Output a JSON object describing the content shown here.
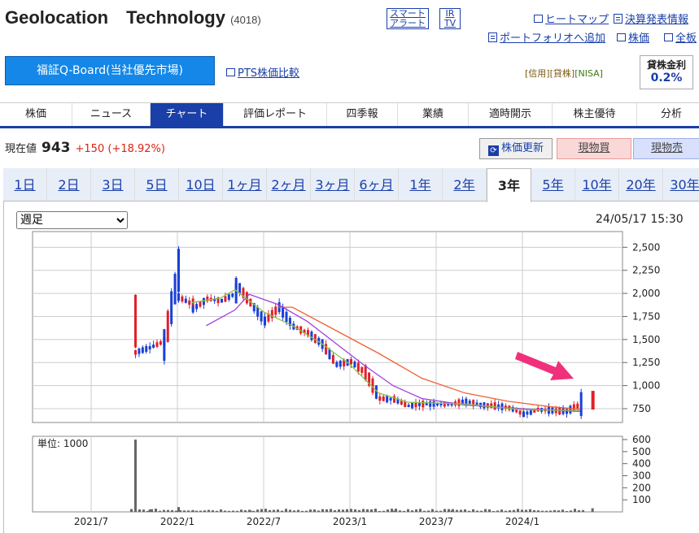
{
  "header": {
    "company": "Geolocation　Technology",
    "code": "(4018)",
    "smart_alert": [
      "スマート",
      "アラート"
    ],
    "ir_tv": [
      "IR",
      "TV"
    ],
    "links_row1": [
      "ヒートマップ",
      "決算発表情報"
    ],
    "links_row2": [
      "ポートフォリオへ追加",
      "株価",
      "全板"
    ]
  },
  "market": {
    "button_label": "福証Q-Board(当社優先市場)",
    "pts_link": "PTS株価比較",
    "tags": {
      "credit": "[信用]",
      "lending": "[貸株]",
      "nisa": "[NISA]"
    },
    "lending_rate_title": "貸株金利",
    "lending_rate_value": "0.2%"
  },
  "nav": {
    "tabs": [
      "株価",
      "ニュース",
      "チャート",
      "評価レポート",
      "四季報",
      "業績",
      "適時開示",
      "株主優待",
      "分析"
    ],
    "active": "チャート"
  },
  "quote": {
    "label": "現在値",
    "price": "943",
    "change": "+150",
    "change_pct": "(+18.92%)",
    "refresh_label": "株価更新",
    "buy_label": "現物買",
    "sell_label": "現物売"
  },
  "range_tabs": {
    "items": [
      "1日",
      "2日",
      "3日",
      "5日",
      "10日",
      "1ヶ月",
      "2ヶ月",
      "3ヶ月",
      "6ヶ月",
      "1年",
      "2年",
      "3年",
      "5年",
      "10年",
      "20年",
      "30年"
    ],
    "active": "3年"
  },
  "chart_controls": {
    "period_select": "週足",
    "timestamp": "24/05/17 15:30"
  },
  "colors": {
    "up": "#e0202a",
    "down": "#1a3fd8",
    "ma_short": "#8bc34a",
    "ma_mid": "#a23ee0",
    "ma_long": "#f06030",
    "volume": "#666666",
    "nav_active": "#1a3fa8"
  },
  "chart_data": [
    {
      "type": "candlestick",
      "x_labels": [
        "2021/7",
        "2022/1",
        "2022/7",
        "2023/1",
        "2023/7",
        "2024/1"
      ],
      "yticks": [
        "2,500",
        "2,250",
        "2,000",
        "1,750",
        "1,500",
        "1,250",
        "1,000",
        "750"
      ],
      "ylim": [
        600,
        2600
      ],
      "price_path": [
        [
          "2021/10",
          1700
        ],
        [
          "2021/10",
          1360
        ],
        [
          "2021/11",
          1410
        ],
        [
          "2021/12",
          1480
        ],
        [
          "2021/12",
          1440
        ],
        [
          "2022/1",
          2250
        ],
        [
          "2022/1",
          1960
        ],
        [
          "2022/2",
          1880
        ],
        [
          "2022/2",
          1830
        ],
        [
          "2022/3",
          1940
        ],
        [
          "2022/4",
          1920
        ],
        [
          "2022/5",
          2000
        ],
        [
          "2022/5",
          2110
        ],
        [
          "2022/6",
          1900
        ],
        [
          "2022/7",
          1700
        ],
        [
          "2022/8",
          1850
        ],
        [
          "2022/9",
          1640
        ],
        [
          "2022/10",
          1570
        ],
        [
          "2022/11",
          1450
        ],
        [
          "2022/12",
          1230
        ],
        [
          "2023/1",
          1260
        ],
        [
          "2023/2",
          1140
        ],
        [
          "2023/3",
          860
        ],
        [
          "2023/4",
          850
        ],
        [
          "2023/5",
          780
        ],
        [
          "2023/6",
          800
        ],
        [
          "2023/7",
          800
        ],
        [
          "2023/8",
          800
        ],
        [
          "2023/9",
          830
        ],
        [
          "2023/10",
          790
        ],
        [
          "2023/11",
          780
        ],
        [
          "2023/12",
          760
        ],
        [
          "2024/1",
          690
        ],
        [
          "2024/2",
          740
        ],
        [
          "2024/3",
          730
        ],
        [
          "2024/4",
          720
        ],
        [
          "2024/5",
          800
        ],
        [
          "2024/5",
          943
        ]
      ],
      "ma_long_path": [
        [
          "2022/8",
          1850
        ],
        [
          "2022/9",
          1850
        ],
        [
          "2022/12",
          1600
        ],
        [
          "2023/3",
          1350
        ],
        [
          "2023/6",
          1080
        ],
        [
          "2023/9",
          920
        ],
        [
          "2023/12",
          830
        ],
        [
          "2024/3",
          770
        ],
        [
          "2024/5",
          745
        ]
      ],
      "ma_mid_path": [
        [
          "2022/3",
          1650
        ],
        [
          "2022/5",
          1820
        ],
        [
          "2022/6",
          1990
        ],
        [
          "2022/8",
          1880
        ],
        [
          "2022/10",
          1700
        ],
        [
          "2022/12",
          1460
        ],
        [
          "2023/2",
          1220
        ],
        [
          "2023/4",
          1000
        ],
        [
          "2023/6",
          860
        ],
        [
          "2023/9",
          790
        ],
        [
          "2024/1",
          750
        ],
        [
          "2024/5",
          720
        ]
      ],
      "ma_short_path": [
        [
          "2022/2",
          1900
        ],
        [
          "2022/4",
          1950
        ],
        [
          "2022/5",
          2040
        ],
        [
          "2022/7",
          1800
        ],
        [
          "2022/9",
          1650
        ],
        [
          "2022/11",
          1460
        ],
        [
          "2023/1",
          1230
        ],
        [
          "2023/3",
          920
        ],
        [
          "2023/5",
          820
        ],
        [
          "2023/9",
          800
        ],
        [
          "2024/1",
          740
        ],
        [
          "2024/5",
          730
        ]
      ]
    },
    {
      "type": "bar",
      "unit_label": "単位: 1000",
      "yticks": [
        "600",
        "500",
        "400",
        "300",
        "200",
        "100"
      ],
      "ylim": [
        0,
        600
      ],
      "x": [
        "2021/10",
        "2021/11",
        "2022/1",
        "2022/2",
        "2022/6",
        "2023/4",
        "2023/8",
        "2024/5"
      ],
      "values": [
        600,
        20,
        40,
        15,
        12,
        10,
        12,
        30
      ]
    }
  ]
}
